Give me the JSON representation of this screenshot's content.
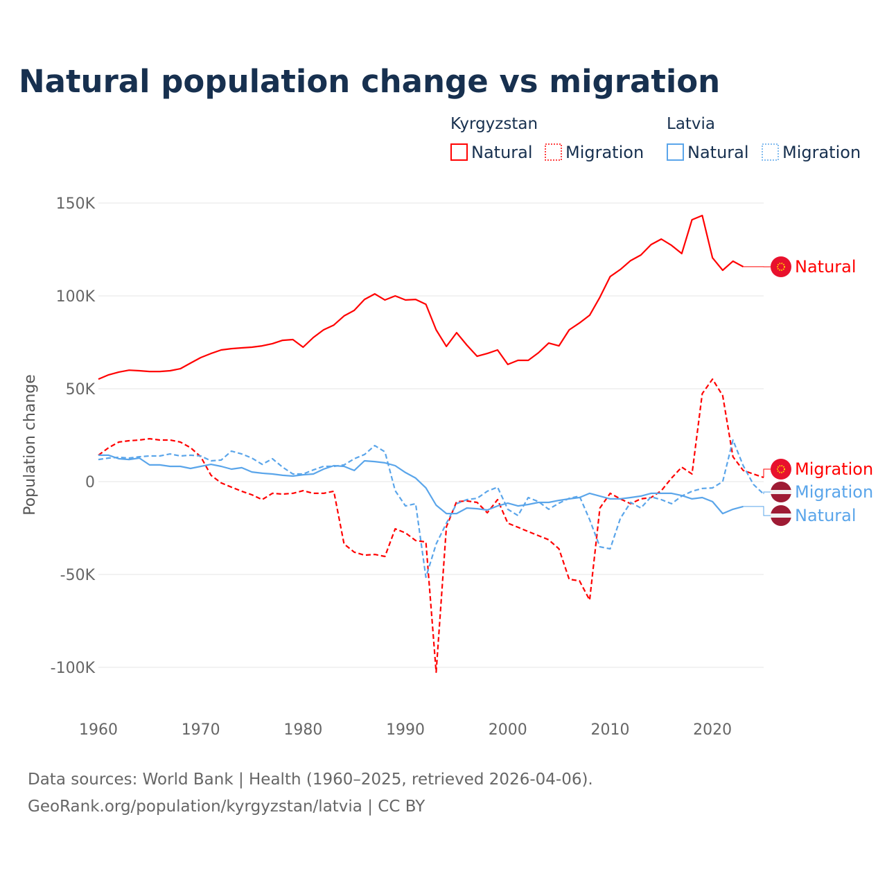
{
  "chart_data": {
    "type": "line",
    "title": "Natural population change vs migration",
    "ylabel": "Population change",
    "xlabel": "",
    "ylim": [
      -100000,
      150000
    ],
    "xlim": [
      1960,
      2025
    ],
    "yticks": [
      {
        "v": 150000,
        "label": "150K"
      },
      {
        "v": 100000,
        "label": "100K"
      },
      {
        "v": 50000,
        "label": "50K"
      },
      {
        "v": 0,
        "label": "0"
      },
      {
        "v": -50000,
        "label": "-50K"
      },
      {
        "v": -100000,
        "label": "-100K"
      }
    ],
    "xticks": [
      {
        "v": 1960,
        "label": "1960"
      },
      {
        "v": 1970,
        "label": "1970"
      },
      {
        "v": 1980,
        "label": "1980"
      },
      {
        "v": 1990,
        "label": "1990"
      },
      {
        "v": 2000,
        "label": "2000"
      },
      {
        "v": 2010,
        "label": "2010"
      },
      {
        "v": 2020,
        "label": "2020"
      }
    ],
    "grid": true,
    "legend_placement": "top-right",
    "legend_groups": [
      {
        "country": "Kyrgyzstan",
        "items": [
          {
            "label": "Natural",
            "style": "solid",
            "color": "#ff0000"
          },
          {
            "label": "Migration",
            "style": "dashed",
            "color": "#ff0000"
          }
        ]
      },
      {
        "country": "Latvia",
        "items": [
          {
            "label": "Natural",
            "style": "solid",
            "color": "#5aa5ea"
          },
          {
            "label": "Migration",
            "style": "dashed",
            "color": "#5aa5ea"
          }
        ]
      }
    ],
    "series": [
      {
        "name": "Kyrgyzstan Natural",
        "end_label": "Natural",
        "country": "Kyrgyzstan",
        "color": "#ff0000",
        "dash": false,
        "x_start": 1960,
        "values": [
          55.2,
          57.5,
          59,
          60,
          59.7,
          59.3,
          59.3,
          59.7,
          60.8,
          63.8,
          66.8,
          69,
          70.9,
          71.6,
          72,
          72.4,
          73.1,
          74.3,
          76.1,
          76.5,
          72.4,
          77.6,
          81.7,
          84.3,
          89.2,
          92.2,
          98.1,
          101.1,
          97.8,
          100,
          97.8,
          98.1,
          95.5,
          81.7,
          72.8,
          80.2,
          73.5,
          67.5,
          69,
          70.9,
          63.1,
          65.3,
          65.3,
          69.4,
          74.6,
          73.1,
          81.7,
          85.4,
          89.6,
          99.3,
          110.4,
          114.2,
          119,
          122,
          127.6,
          130.6,
          127.2,
          122.8,
          141,
          143.3,
          120.5,
          113.8,
          118.7,
          115.7
        ]
      },
      {
        "name": "Kyrgyzstan Migration",
        "end_label": "Migration",
        "country": "Kyrgyzstan",
        "color": "#ff0000",
        "dash": true,
        "x_start": 1960,
        "values": [
          14.2,
          18.3,
          21.3,
          22,
          22.4,
          23.1,
          22.4,
          22.4,
          21.3,
          18.3,
          13.4,
          3.4,
          -0.7,
          -3,
          -5.2,
          -7.1,
          -9.7,
          -6.3,
          -6.7,
          -6.3,
          -4.9,
          -6.3,
          -6.3,
          -5.2,
          -33.6,
          -38,
          -39.6,
          -39.2,
          -40.3,
          -25.4,
          -27.6,
          -31.7,
          -32.5,
          -102.6,
          -24.3,
          -10.8,
          -10.4,
          -11.2,
          -16.8,
          -9.7,
          -22.4,
          -24.6,
          -26.9,
          -29.1,
          -31.3,
          -36.2,
          -52.6,
          -53.4,
          -63.8,
          -14.2,
          -6.3,
          -9.3,
          -11.9,
          -9.3,
          -8.6,
          -4.9,
          1.9,
          7.8,
          4.1,
          47.4,
          55.2,
          46.3,
          13.4,
          6,
          4.1,
          2.2
        ]
      },
      {
        "name": "Latvia Migration",
        "end_label": "Migration",
        "country": "Latvia",
        "color": "#5aa5ea",
        "dash": true,
        "x_start": 1960,
        "values": [
          11.9,
          12.7,
          13.1,
          12.7,
          13.4,
          13.8,
          13.8,
          14.9,
          13.8,
          14.2,
          13.8,
          11.2,
          11.6,
          16.4,
          14.9,
          12.7,
          9.3,
          12.3,
          7.8,
          4.1,
          4.1,
          6.3,
          8.2,
          8.2,
          9,
          12.3,
          14.6,
          19.4,
          16,
          -4.9,
          -13.1,
          -11.9,
          -51.5,
          -33.6,
          -22.4,
          -11.9,
          -9.7,
          -9,
          -5.2,
          -3,
          -14.9,
          -18.3,
          -8.6,
          -10.8,
          -14.9,
          -11.6,
          -9,
          -7.8,
          -20.5,
          -35.1,
          -36.2,
          -19.8,
          -11.2,
          -14.2,
          -8.2,
          -9.7,
          -11.9,
          -7.8,
          -5.2,
          -3.7,
          -3.4,
          0,
          22.4,
          8.6,
          -1.5,
          -6.7
        ]
      },
      {
        "name": "Latvia Natural",
        "end_label": "Natural",
        "country": "Latvia",
        "color": "#5aa5ea",
        "dash": false,
        "x_start": 1960,
        "values": [
          14.2,
          14.2,
          12.3,
          11.9,
          12.7,
          9,
          9,
          8.2,
          8.2,
          7.1,
          8.2,
          9.3,
          8.2,
          6.7,
          7.5,
          5.2,
          4.5,
          4.1,
          3.4,
          3,
          3.7,
          4.1,
          6.7,
          8.6,
          8.2,
          6,
          11.2,
          10.8,
          10.1,
          8.6,
          4.9,
          1.9,
          -3.4,
          -12.7,
          -17.2,
          -17.2,
          -14.2,
          -14.6,
          -15.3,
          -13.1,
          -11.6,
          -13.1,
          -12.3,
          -11.2,
          -11.2,
          -10.1,
          -9.3,
          -8.6,
          -6.3,
          -7.8,
          -9.3,
          -9.3,
          -8.6,
          -7.8,
          -6.3,
          -6.3,
          -6.3,
          -7.5,
          -9.3,
          -8.6,
          -10.8,
          -17.2,
          -14.9,
          -13.4
        ]
      }
    ],
    "value_unit": "thousands"
  },
  "footer": {
    "line1": "Data sources: World Bank | Health (1960–2025, retrieved 2026-04-06).",
    "line2": "GeoRank.org/population/kyrgyzstan/latvia | CC BY"
  }
}
